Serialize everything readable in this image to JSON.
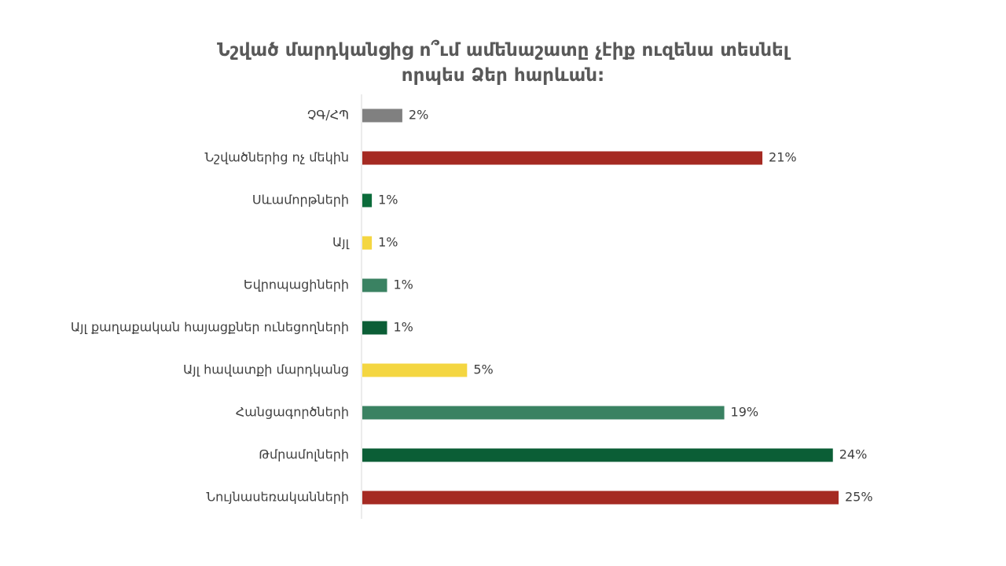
{
  "chart_data": {
    "type": "bar",
    "orientation": "horizontal",
    "title_lines": [
      "Նշված մարդկանցից ո՞ւմ ամենաշատը չէիք ուզենա տեսնել",
      "որպես Ձեր հարևան:"
    ],
    "categories": [
      "ՉԳ/ՀՊ",
      "Նշվածներից ոչ մեկին",
      "Սևամորթների",
      "Այլ",
      "Եվրոպացիների",
      "Այլ քաղաքական հայացքներ ունեցողների",
      "Այլ հավատքի մարդկանց",
      "Հանցագործների",
      "Թմրամոլների",
      "Նույնասեռականների"
    ],
    "values": [
      2,
      21,
      1,
      1,
      1,
      1,
      5,
      19,
      24,
      25
    ],
    "value_labels": [
      "2%",
      "21%",
      "1%",
      "1%",
      "1%",
      "1%",
      "5%",
      "19%",
      "24%",
      "25%"
    ],
    "colors": [
      "#808080",
      "#A52A22",
      "#0B6B3A",
      "#F4D641",
      "#3A8262",
      "#0B5E36",
      "#F4D641",
      "#3A8262",
      "#0B5E36",
      "#A52A22"
    ],
    "xlim": [
      0,
      25
    ],
    "value_display_max": [
      2.1,
      21,
      0.5,
      0.5,
      1.3,
      1.3,
      5.5,
      19,
      24.7,
      25
    ],
    "axis_color": "#D9D9D9",
    "grid": false,
    "legend": false
  }
}
